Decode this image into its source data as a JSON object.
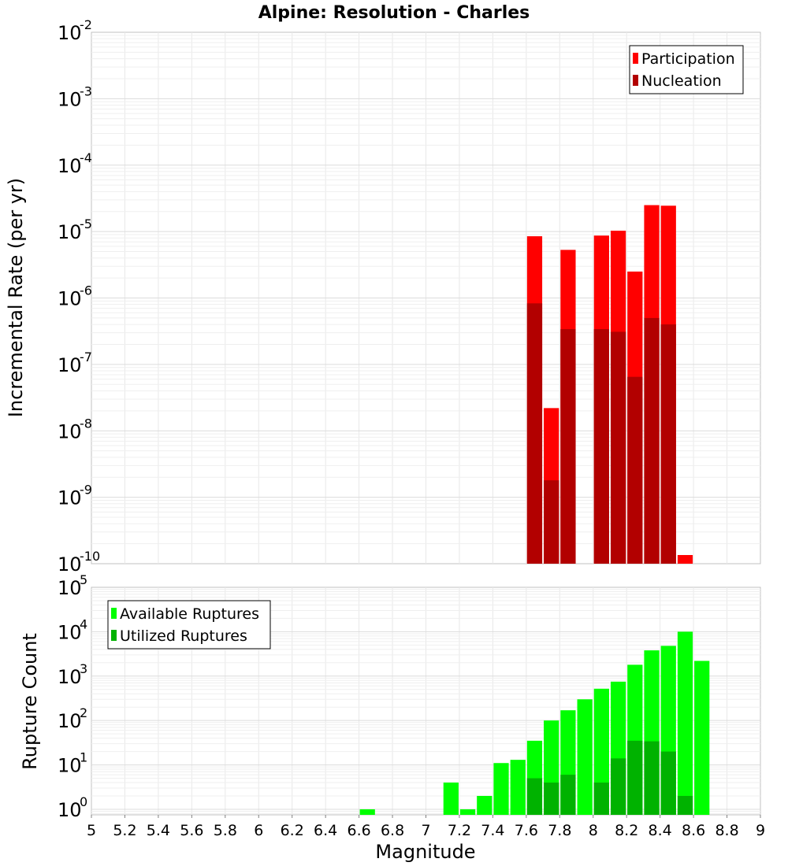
{
  "chart_data": [
    {
      "type": "bar",
      "title": "Alpine: Resolution - Charles",
      "xlabel": "",
      "ylabel": "Incremental Rate (per yr)",
      "y_scale": "log",
      "xlim": [
        5,
        9
      ],
      "ylim": [
        1e-10,
        0.01
      ],
      "y_tick_exponents": [
        -10,
        -9,
        -8,
        -7,
        -6,
        -5,
        -4,
        -3,
        -2
      ],
      "grid": true,
      "legend_position": "top-right",
      "bar_width": 0.1,
      "series": [
        {
          "name": "Participation",
          "color": "#ff0000",
          "x": [
            7.65,
            7.75,
            7.85,
            8.05,
            8.15,
            8.25,
            8.35,
            8.45,
            8.55
          ],
          "values": [
            8.5e-06,
            2.2e-08,
            5.3e-06,
            8.7e-06,
            1.03e-05,
            2.5e-06,
            2.5e-05,
            2.45e-05,
            1.35e-10
          ]
        },
        {
          "name": "Nucleation",
          "color": "#b20000",
          "x": [
            7.65,
            7.75,
            7.85,
            8.05,
            8.15,
            8.25,
            8.35,
            8.45
          ],
          "values": [
            8.3e-07,
            1.8e-09,
            3.4e-07,
            3.4e-07,
            3.1e-07,
            6.5e-08,
            5e-07,
            4e-07
          ]
        }
      ]
    },
    {
      "type": "bar",
      "title": "",
      "xlabel": "Magnitude",
      "ylabel": "Rupture Count",
      "y_scale": "log",
      "xlim": [
        5,
        9
      ],
      "ylim": [
        0.75,
        100000
      ],
      "y_tick_exponents": [
        0,
        1,
        2,
        3,
        4,
        5
      ],
      "x_ticks": [
        "5",
        "5.2",
        "5.4",
        "5.6",
        "5.8",
        "6",
        "6.2",
        "6.4",
        "6.6",
        "6.8",
        "7",
        "7.2",
        "7.4",
        "7.6",
        "7.8",
        "8",
        "8.2",
        "8.4",
        "8.6",
        "8.8",
        "9"
      ],
      "grid": true,
      "legend_position": "top-left",
      "bar_width": 0.1,
      "series": [
        {
          "name": "Available Ruptures",
          "color": "#00ff00",
          "x": [
            6.65,
            7.15,
            7.25,
            7.35,
            7.45,
            7.55,
            7.65,
            7.75,
            7.85,
            7.95,
            8.05,
            8.15,
            8.25,
            8.35,
            8.45,
            8.55,
            8.65
          ],
          "values": [
            1,
            4,
            1,
            2,
            11,
            13,
            35,
            100,
            170,
            300,
            520,
            750,
            1800,
            3800,
            4800,
            10000,
            2200
          ]
        },
        {
          "name": "Utilized Ruptures",
          "color": "#00b200",
          "x": [
            7.65,
            7.75,
            7.85,
            8.05,
            8.15,
            8.25,
            8.35,
            8.45,
            8.55
          ],
          "values": [
            5,
            4,
            6,
            4,
            14,
            35,
            34,
            20,
            2
          ]
        }
      ]
    }
  ]
}
